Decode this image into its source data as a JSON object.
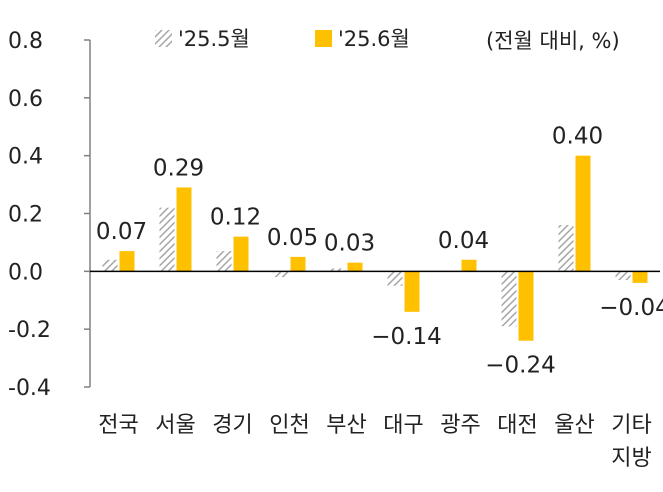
{
  "colors": {
    "may_hatch_fg": "#a6a6a6",
    "june_bar": "#ffc000",
    "axis": "#808080",
    "zero_line": "#000000",
    "text": "#222222"
  },
  "chart_data": {
    "type": "bar",
    "unit_note": "(전월 대비, %)",
    "categories": [
      [
        "전국"
      ],
      [
        "서울"
      ],
      [
        "경기"
      ],
      [
        "인천"
      ],
      [
        "부산"
      ],
      [
        "대구"
      ],
      [
        "광주"
      ],
      [
        "대전"
      ],
      [
        "울산"
      ],
      [
        "기타",
        "지방"
      ]
    ],
    "series": [
      {
        "name": "'25.5월",
        "pattern": "hatched-gray",
        "values": [
          0.04,
          0.22,
          0.07,
          -0.02,
          0.01,
          -0.05,
          0.0,
          -0.19,
          0.16,
          -0.03
        ]
      },
      {
        "name": "'25.6월",
        "pattern": "solid-yellow",
        "values": [
          0.07,
          0.29,
          0.12,
          0.05,
          0.03,
          -0.14,
          0.04,
          -0.24,
          0.4,
          -0.04
        ]
      }
    ],
    "data_labels": [
      "0.07",
      "0.29",
      "0.12",
      "0.05",
      "0.03",
      "-0.14",
      "0.04",
      "-0.24",
      "0.40",
      "-0.04"
    ],
    "y_ticks": [
      "0.8",
      "0.6",
      "0.4",
      "0.2",
      "0.0",
      "-0.2",
      "-0.4"
    ],
    "ylim": [
      -0.4,
      0.8
    ],
    "legend_position": "top",
    "grid": false
  }
}
